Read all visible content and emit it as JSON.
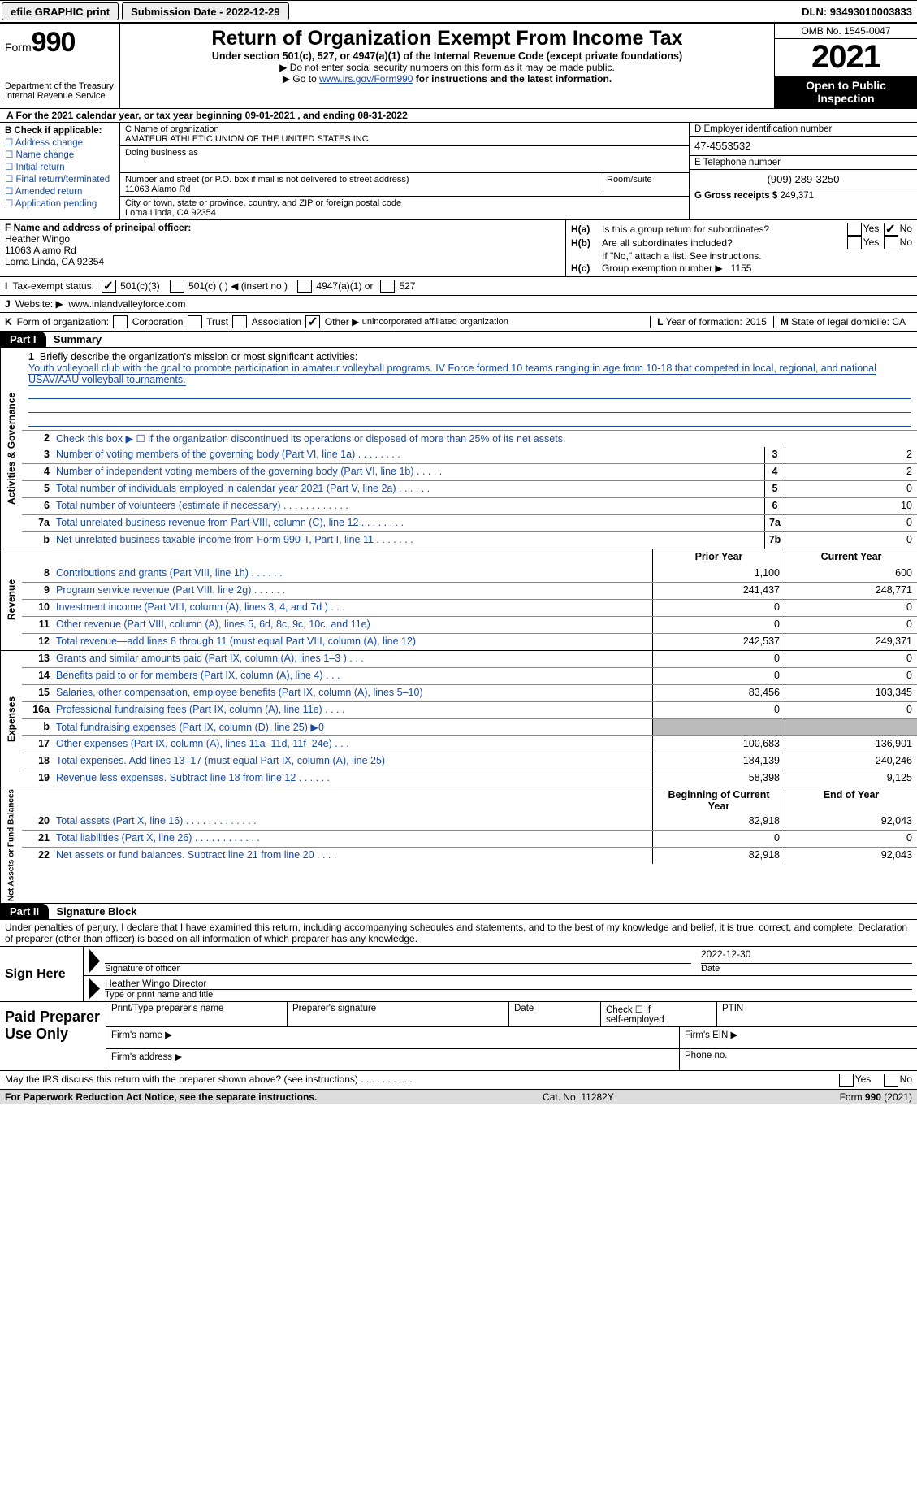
{
  "topbar": {
    "efile": "efile GRAPHIC print",
    "submission": "Submission Date - 2022-12-29",
    "dln": "DLN: 93493010003833"
  },
  "header": {
    "form_label": "Form",
    "form_number": "990",
    "dept1": "Department of the Treasury",
    "dept2": "Internal Revenue Service",
    "title": "Return of Organization Exempt From Income Tax",
    "sub": "Under section 501(c), 527, or 4947(a)(1) of the Internal Revenue Code (except private foundations)",
    "note1": "▶ Do not enter social security numbers on this form as it may be made public.",
    "note2_pre": "▶ Go to ",
    "note2_link": "www.irs.gov/Form990",
    "note2_post": " for instructions and the latest information.",
    "omb": "OMB No. 1545-0047",
    "year": "2021",
    "open": "Open to Public Inspection"
  },
  "row_a": "A For the 2021 calendar year, or tax year beginning 09-01-2021    , and ending 08-31-2022",
  "col_b": {
    "label": "B Check if applicable:",
    "items": [
      "Address change",
      "Name change",
      "Initial return",
      "Final return/terminated",
      "Amended return",
      "Application pending"
    ]
  },
  "col_c": {
    "name_label": "C Name of organization",
    "name": "AMATEUR ATHLETIC UNION OF THE UNITED STATES INC",
    "dba_label": "Doing business as",
    "dba": "",
    "addr_label": "Number and street (or P.O. box if mail is not delivered to street address)",
    "room_label": "Room/suite",
    "addr": "11063 Alamo Rd",
    "city_label": "City or town, state or province, country, and ZIP or foreign postal code",
    "city": "Loma Linda, CA  92354"
  },
  "col_d": {
    "ein_label": "D Employer identification number",
    "ein": "47-4553532",
    "phone_label": "E Telephone number",
    "phone": "(909) 289-3250",
    "gross_label": "G Gross receipts $",
    "gross": "249,371"
  },
  "col_f": {
    "label": "F  Name and address of principal officer:",
    "name": "Heather Wingo",
    "addr1": "11063 Alamo Rd",
    "addr2": "Loma Linda, CA  92354"
  },
  "col_h": {
    "ha_label": "H(a)",
    "ha_text": "Is this a group return for subordinates?",
    "hb_label": "H(b)",
    "hb_text": "Are all subordinates included?",
    "hb_note": "If \"No,\" attach a list. See instructions.",
    "hc_label": "H(c)",
    "hc_text": "Group exemption number ▶",
    "hc_val": "1155",
    "yes": "Yes",
    "no": "No"
  },
  "row_i": {
    "label": "I",
    "text": "Tax-exempt status:",
    "opts": [
      "501(c)(3)",
      "501(c) (  ) ◀ (insert no.)",
      "4947(a)(1) or",
      "527"
    ]
  },
  "row_j": {
    "label": "J",
    "text": "Website: ▶",
    "val": "www.inlandvalleyforce.com"
  },
  "row_k": {
    "label": "K",
    "text": "Form of organization:",
    "opts": [
      "Corporation",
      "Trust",
      "Association",
      "Other ▶"
    ],
    "other_val": "unincorporated affiliated organization",
    "l_label": "L",
    "l_text": "Year of formation:",
    "l_val": "2015",
    "m_label": "M",
    "m_text": "State of legal domicile:",
    "m_val": "CA"
  },
  "parts": {
    "p1": "Part I",
    "p1_title": "Summary",
    "p2": "Part II",
    "p2_title": "Signature Block"
  },
  "mission": {
    "num": "1",
    "label": "Briefly describe the organization's mission or most significant activities:",
    "text": "Youth volleyball club with the goal to promote participation in amateur volleyball programs. IV Force formed 10 teams ranging in age from 10-18 that competed in local, regional, and national USAV/AAU volleyball tournaments."
  },
  "activities": {
    "label": "Activities & Governance",
    "line2": "Check this box ▶ ☐  if the organization discontinued its operations or disposed of more than 25% of its net assets.",
    "rows": [
      {
        "n": "3",
        "d": "Number of voting members of the governing body (Part VI, line 1a)    .    .    .    .    .    .    .    .",
        "b": "3",
        "v": "2"
      },
      {
        "n": "4",
        "d": "Number of independent voting members of the governing body (Part VI, line 1b)    .    .    .    .    .",
        "b": "4",
        "v": "2"
      },
      {
        "n": "5",
        "d": "Total number of individuals employed in calendar year 2021 (Part V, line 2a)    .    .    .    .    .    .",
        "b": "5",
        "v": "0"
      },
      {
        "n": "6",
        "d": "Total number of volunteers (estimate if necessary)    .    .    .    .    .    .    .    .    .    .    .    .",
        "b": "6",
        "v": "10"
      },
      {
        "n": "7a",
        "d": "Total unrelated business revenue from Part VIII, column (C), line 12    .    .    .    .    .    .    .    .",
        "b": "7a",
        "v": "0"
      },
      {
        "n": "b",
        "d": "Net unrelated business taxable income from Form 990-T, Part I, line 11    .    .    .    .    .    .    .",
        "b": "7b",
        "v": "0"
      }
    ]
  },
  "yearcols": {
    "prior": "Prior Year",
    "current": "Current Year",
    "boy": "Beginning of Current Year",
    "eoy": "End of Year"
  },
  "revenue": {
    "label": "Revenue",
    "rows": [
      {
        "n": "8",
        "d": "Contributions and grants (Part VIII, line 1h)    .    .    .    .    .    .",
        "p": "1,100",
        "c": "600"
      },
      {
        "n": "9",
        "d": "Program service revenue (Part VIII, line 2g)    .    .    .    .    .    .",
        "p": "241,437",
        "c": "248,771"
      },
      {
        "n": "10",
        "d": "Investment income (Part VIII, column (A), lines 3, 4, and 7d )    .    .    .",
        "p": "0",
        "c": "0"
      },
      {
        "n": "11",
        "d": "Other revenue (Part VIII, column (A), lines 5, 6d, 8c, 9c, 10c, and 11e)",
        "p": "0",
        "c": "0"
      },
      {
        "n": "12",
        "d": "Total revenue—add lines 8 through 11 (must equal Part VIII, column (A), line 12)",
        "p": "242,537",
        "c": "249,371"
      }
    ]
  },
  "expenses": {
    "label": "Expenses",
    "rows": [
      {
        "n": "13",
        "d": "Grants and similar amounts paid (Part IX, column (A), lines 1–3 )   .   .   .",
        "p": "0",
        "c": "0"
      },
      {
        "n": "14",
        "d": "Benefits paid to or for members (Part IX, column (A), line 4)    .    .    .",
        "p": "0",
        "c": "0"
      },
      {
        "n": "15",
        "d": "Salaries, other compensation, employee benefits (Part IX, column (A), lines 5–10)",
        "p": "83,456",
        "c": "103,345"
      },
      {
        "n": "16a",
        "d": "Professional fundraising fees (Part IX, column (A), line 11e)    .    .    .    .",
        "p": "0",
        "c": "0"
      },
      {
        "n": "b",
        "d": "Total fundraising expenses (Part IX, column (D), line 25) ▶0",
        "p": "GREY",
        "c": "GREY"
      },
      {
        "n": "17",
        "d": "Other expenses (Part IX, column (A), lines 11a–11d, 11f–24e)    .    .    .",
        "p": "100,683",
        "c": "136,901"
      },
      {
        "n": "18",
        "d": "Total expenses. Add lines 13–17 (must equal Part IX, column (A), line 25)",
        "p": "184,139",
        "c": "240,246"
      },
      {
        "n": "19",
        "d": "Revenue less expenses. Subtract line 18 from line 12    .    .    .    .    .    .",
        "p": "58,398",
        "c": "9,125"
      }
    ]
  },
  "netassets": {
    "label": "Net Assets or Fund Balances",
    "rows": [
      {
        "n": "20",
        "d": "Total assets (Part X, line 16)  .    .    .    .    .    .    .    .    .    .    .    .    .",
        "p": "82,918",
        "c": "92,043"
      },
      {
        "n": "21",
        "d": "Total liabilities (Part X, line 26)  .    .    .    .    .    .    .    .    .    .    .    .",
        "p": "0",
        "c": "0"
      },
      {
        "n": "22",
        "d": "Net assets or fund balances. Subtract line 21 from line 20    .    .    .    .",
        "p": "82,918",
        "c": "92,043"
      }
    ]
  },
  "penalties": "Under penalties of perjury, I declare that I have examined this return, including accompanying schedules and statements, and to the best of my knowledge and belief, it is true, correct, and complete. Declaration of preparer (other than officer) is based on all information of which preparer has any knowledge.",
  "sign": {
    "label": "Sign Here",
    "sig_officer": "Signature of officer",
    "date": "Date",
    "date_val": "2022-12-30",
    "name": "Heather Wingo  Director",
    "name_label": "Type or print name and title"
  },
  "paid": {
    "label": "Paid Preparer Use Only",
    "h1": "Print/Type preparer's name",
    "h2": "Preparer's signature",
    "h3": "Date",
    "h4_pre": "Check ☐ if",
    "h4": "self-employed",
    "h5": "PTIN",
    "firm_name": "Firm's name    ▶",
    "firm_ein": "Firm's EIN ▶",
    "firm_addr": "Firm's address ▶",
    "phone": "Phone no."
  },
  "footer": {
    "discuss": "May the IRS discuss this return with the preparer shown above? (see instructions)    .    .    .    .    .    .    .    .    .    .",
    "yes": "Yes",
    "no": "No",
    "paperwork": "For Paperwork Reduction Act Notice, see the separate instructions.",
    "cat": "Cat. No. 11282Y",
    "form": "Form 990 (2021)"
  }
}
